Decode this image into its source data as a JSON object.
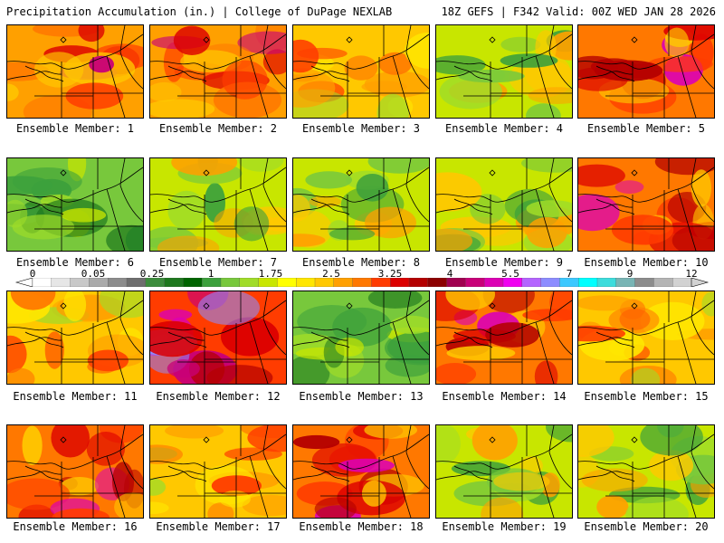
{
  "header": {
    "left": "Precipitation Accumulation (in.) | College of DuPage NEXLAB",
    "right": "18Z GEFS | F342 Valid: 00Z WED JAN 28 2026"
  },
  "member_prefix": "Ensemble Member:",
  "members": [
    {
      "num": 1,
      "label": "Ensemble Member: 1",
      "palette": "warm"
    },
    {
      "num": 2,
      "label": "Ensemble Member: 2",
      "palette": "warm"
    },
    {
      "num": 3,
      "label": "Ensemble Member: 3",
      "palette": "mid"
    },
    {
      "num": 4,
      "label": "Ensemble Member: 4",
      "palette": "greenish"
    },
    {
      "num": 5,
      "label": "Ensemble Member: 5",
      "palette": "hot"
    },
    {
      "num": 6,
      "label": "Ensemble Member: 6",
      "palette": "green"
    },
    {
      "num": 7,
      "label": "Ensemble Member: 7",
      "palette": "greenish"
    },
    {
      "num": 8,
      "label": "Ensemble Member: 8",
      "palette": "greenish"
    },
    {
      "num": 9,
      "label": "Ensemble Member: 9",
      "palette": "greenish"
    },
    {
      "num": 10,
      "label": "Ensemble Member: 10",
      "palette": "hot"
    },
    {
      "num": 11,
      "label": "Ensemble Member: 11",
      "palette": "mid"
    },
    {
      "num": 12,
      "label": "Ensemble Member: 12",
      "palette": "extreme"
    },
    {
      "num": 13,
      "label": "Ensemble Member: 13",
      "palette": "green"
    },
    {
      "num": 14,
      "label": "Ensemble Member: 14",
      "palette": "hot"
    },
    {
      "num": 15,
      "label": "Ensemble Member: 15",
      "palette": "mid"
    },
    {
      "num": 16,
      "label": "Ensemble Member: 16",
      "palette": "hot"
    },
    {
      "num": 17,
      "label": "Ensemble Member: 17",
      "palette": "mid"
    },
    {
      "num": 18,
      "label": "Ensemble Member: 18",
      "palette": "hot"
    },
    {
      "num": 19,
      "label": "Ensemble Member: 19",
      "palette": "greenish"
    },
    {
      "num": 20,
      "label": "Ensemble Member: 20",
      "palette": "greenish"
    }
  ],
  "color_scale": {
    "unit": "in.",
    "tick_labels": [
      "0",
      "0.05",
      "0.25",
      "1",
      "1.75",
      "2.5",
      "3.25",
      "4",
      "5.5",
      "7",
      "9",
      "12"
    ],
    "colors": [
      "#ffffff",
      "#e6e6e6",
      "#c8c8c8",
      "#aaaaaa",
      "#8c8c8c",
      "#6e6e6e",
      "#3c8c3c",
      "#1e781e",
      "#006400",
      "#3ca03c",
      "#78c83c",
      "#a0dc28",
      "#c8e600",
      "#ffff00",
      "#ffe600",
      "#ffc800",
      "#ffa000",
      "#ff7800",
      "#ff3c00",
      "#dc0000",
      "#b40000",
      "#8c0000",
      "#a00050",
      "#c80078",
      "#dc00b4",
      "#f000f0",
      "#b464ff",
      "#8c8cff",
      "#3cc8ff",
      "#00ffff",
      "#3cdcdc",
      "#78b4b4",
      "#8c8c8c",
      "#b4b4b4",
      "#d2d2d2"
    ]
  },
  "palettes": {
    "green": {
      "base": "#78c83c",
      "blobs": [
        "#3ca03c",
        "#1e781e",
        "#a0dc28",
        "#c8e600",
        "#3ca03c"
      ]
    },
    "greenish": {
      "base": "#c8e600",
      "blobs": [
        "#78c83c",
        "#ffc800",
        "#3ca03c",
        "#ffa000",
        "#a0dc28"
      ]
    },
    "mid": {
      "base": "#ffc800",
      "blobs": [
        "#ffa000",
        "#ff7800",
        "#ffe600",
        "#ff3c00",
        "#a0dc28"
      ]
    },
    "warm": {
      "base": "#ffa000",
      "blobs": [
        "#ff7800",
        "#ff3c00",
        "#dc0000",
        "#ffc800",
        "#c80078"
      ]
    },
    "hot": {
      "base": "#ff7800",
      "blobs": [
        "#ff3c00",
        "#dc0000",
        "#b40000",
        "#ffc800",
        "#dc00b4"
      ]
    },
    "extreme": {
      "base": "#ff3c00",
      "blobs": [
        "#dc0000",
        "#c80078",
        "#dc00b4",
        "#8c8cff",
        "#b40000"
      ]
    }
  }
}
